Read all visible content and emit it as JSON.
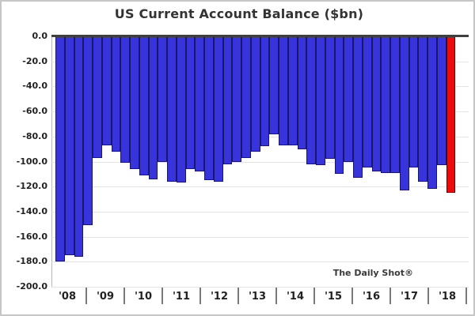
{
  "title": "US Current Account Balance ($bn)",
  "watermark": "The Daily Shot®",
  "y_axis": {
    "tick_labels": [
      "0.0",
      "-20.0",
      "-40.0",
      "-60.0",
      "-80.0",
      "-100.0",
      "-120.0",
      "-140.0",
      "-160.0",
      "-180.0",
      "-200.0"
    ]
  },
  "x_axis": {
    "year_labels": [
      "'08",
      "'09",
      "'10",
      "'11",
      "'12",
      "'13",
      "'14",
      "'15",
      "'16",
      "'17",
      "'18"
    ]
  },
  "chart_data": {
    "type": "bar",
    "title": "US Current Account Balance ($bn)",
    "unit": "$bn",
    "ylim": [
      -200,
      0
    ],
    "grid": "horizontal",
    "legend": "none",
    "categories": [
      "2008 Q1",
      "2008 Q2",
      "2008 Q3",
      "2008 Q4",
      "2009 Q1",
      "2009 Q2",
      "2009 Q3",
      "2009 Q4",
      "2010 Q1",
      "2010 Q2",
      "2010 Q3",
      "2010 Q4",
      "2011 Q1",
      "2011 Q2",
      "2011 Q3",
      "2011 Q4",
      "2012 Q1",
      "2012 Q2",
      "2012 Q3",
      "2012 Q4",
      "2013 Q1",
      "2013 Q2",
      "2013 Q3",
      "2013 Q4",
      "2014 Q1",
      "2014 Q2",
      "2014 Q3",
      "2014 Q4",
      "2015 Q1",
      "2015 Q2",
      "2015 Q3",
      "2015 Q4",
      "2016 Q1",
      "2016 Q2",
      "2016 Q3",
      "2016 Q4",
      "2017 Q1",
      "2017 Q2",
      "2017 Q3",
      "2017 Q4",
      "2018 Q1",
      "2018 Q2",
      "2018 Q3"
    ],
    "values": [
      -180,
      -175,
      -176,
      -151,
      -97,
      -87,
      -92,
      -101,
      -106,
      -111,
      -114,
      -100,
      -116,
      -117,
      -106,
      -108,
      -115,
      -116,
      -102,
      -100,
      -97,
      -92,
      -88,
      -78,
      -87,
      -87,
      -90,
      -102,
      -103,
      -98,
      -110,
      -100,
      -113,
      -105,
      -108,
      -109,
      -109,
      -123,
      -105,
      -116,
      -122,
      -103,
      -125
    ],
    "highlight_index": 42,
    "colors": {
      "bar_fill": "#3734dc",
      "bar_border": "#1a1670",
      "highlight_fill": "#ee0a0a",
      "highlight_border": "#5e0000",
      "zero_line": "#3f3f3f",
      "gridline": "#e4e4e4"
    }
  }
}
